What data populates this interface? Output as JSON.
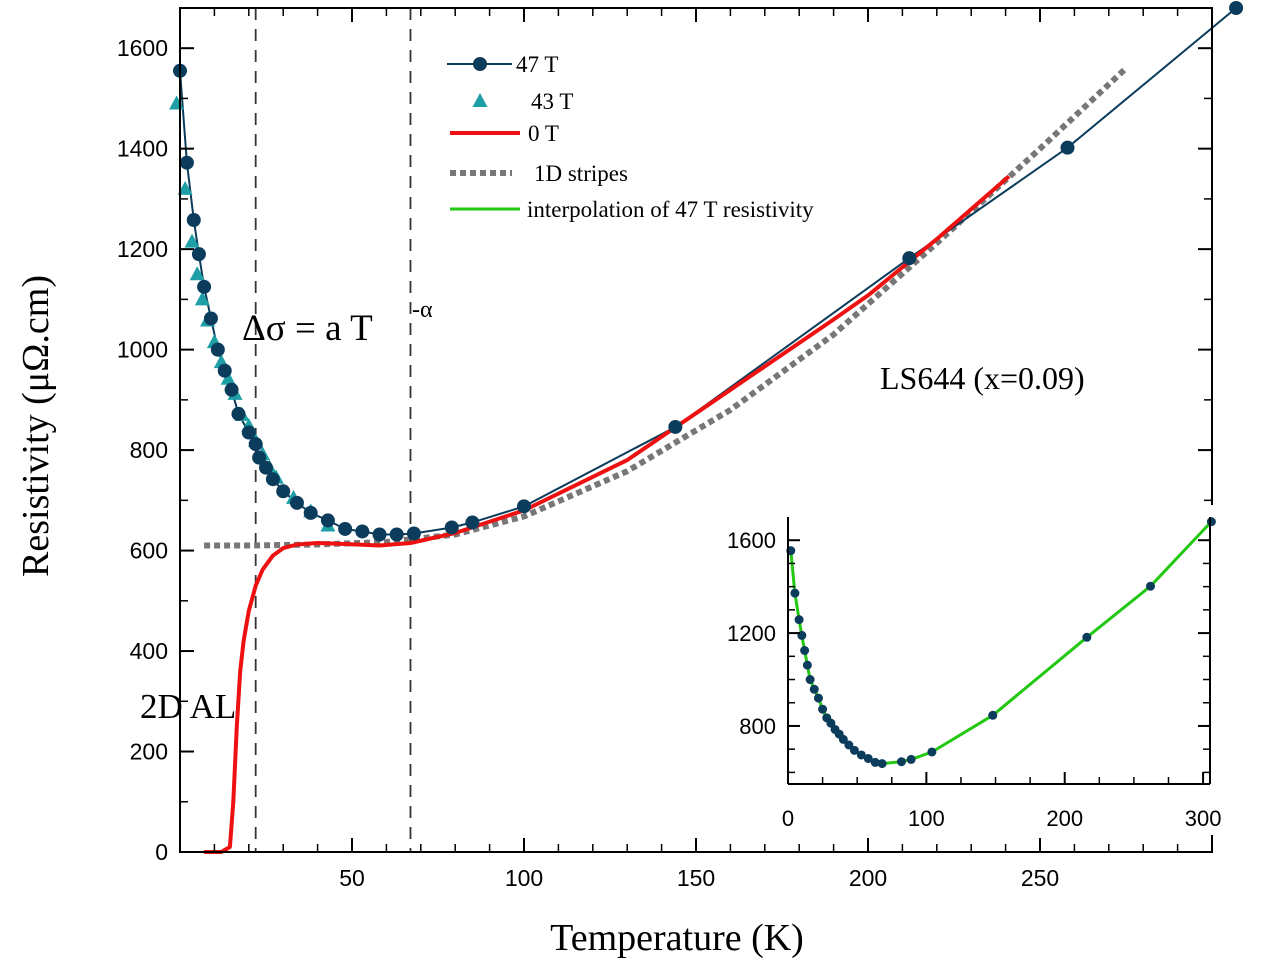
{
  "chart_data": [
    {
      "type": "line",
      "xlabel": "Temperature (K)",
      "ylabel": "Resistivity (μΩ.cm)",
      "xlim": [
        0,
        300
      ],
      "ylim": [
        0,
        1680
      ],
      "x_ticks": [
        50,
        100,
        150,
        200,
        250
      ],
      "y_ticks": [
        0,
        200,
        400,
        600,
        800,
        1000,
        1200,
        1400,
        1600
      ],
      "legend_position": "top-center",
      "annotations": {
        "formula_main": "Δσ = a T",
        "formula_exp": "-α",
        "sample": "LS644 (x=0.09)",
        "al": "2D AL"
      },
      "vlines": [
        22,
        67
      ],
      "series": [
        {
          "name": "47 T",
          "color": "#0c3c5c",
          "marker": "circle",
          "line": true,
          "x": [
            0,
            2,
            4,
            5.5,
            7,
            9,
            11,
            13,
            15,
            17,
            20,
            22,
            23,
            25,
            27,
            30,
            34,
            38,
            43,
            48,
            53,
            58,
            63,
            68,
            79,
            85,
            100,
            144,
            212,
            258,
            307
          ],
          "y": [
            1555,
            1372,
            1258,
            1190,
            1125,
            1062,
            1000,
            958,
            920,
            872,
            835,
            812,
            785,
            765,
            742,
            718,
            695,
            675,
            660,
            643,
            638,
            632,
            632,
            634,
            646,
            656,
            688,
            846,
            1182,
            1402,
            1680
          ]
        },
        {
          "name": "43 T",
          "color": "#1e9fa5",
          "marker": "triangle",
          "line": false,
          "x": [
            -1,
            1.5,
            3.5,
            5,
            6.5,
            8,
            10,
            12,
            14,
            16,
            18,
            20,
            22,
            24,
            26,
            28,
            33,
            38,
            43
          ],
          "y": [
            1490,
            1320,
            1215,
            1150,
            1100,
            1058,
            1015,
            975,
            942,
            912,
            870,
            848,
            818,
            792,
            765,
            745,
            705,
            678,
            650
          ]
        },
        {
          "name": "0 T",
          "color": "#ee1111",
          "marker": null,
          "line": true,
          "x": [
            7,
            12,
            14.5,
            15.5,
            16.5,
            17.5,
            18.5,
            20,
            22,
            24,
            27,
            30,
            34,
            40,
            48,
            58,
            67,
            80,
            100,
            130,
            160,
            190,
            200,
            220,
            241
          ],
          "y": [
            0,
            0,
            10,
            100,
            250,
            360,
            420,
            480,
            530,
            562,
            590,
            605,
            612,
            615,
            613,
            610,
            615,
            635,
            680,
            780,
            920,
            1060,
            1108,
            1220,
            1345
          ]
        },
        {
          "name": "1D stripes",
          "color": "#777777",
          "marker": null,
          "line": true,
          "dash": true,
          "x": [
            7,
            20,
            40,
            60,
            80,
            100,
            130,
            160,
            190,
            220,
            250,
            275
          ],
          "y": [
            610,
            610,
            612,
            617,
            632,
            668,
            758,
            880,
            1030,
            1212,
            1400,
            1560
          ]
        },
        {
          "name": "interpolation of 47 T resistivity",
          "color": "#22c811",
          "marker": null,
          "line": true
        }
      ]
    },
    {
      "type": "line",
      "xlim": [
        0,
        305
      ],
      "ylim": [
        550,
        1700
      ],
      "x_ticks": [
        0,
        100,
        200,
        300
      ],
      "y_ticks": [
        800,
        1200,
        1600
      ],
      "series": [
        {
          "name": "47 T",
          "color": "#0c3c5c",
          "marker": "circle",
          "x": [
            2,
            5,
            8,
            10,
            12,
            14,
            16,
            19,
            22,
            25,
            28,
            31,
            34,
            37,
            40,
            44,
            48,
            53,
            58,
            63,
            68,
            82,
            89,
            104,
            148,
            216,
            262,
            306
          ],
          "y": [
            1555,
            1372,
            1258,
            1190,
            1125,
            1062,
            1000,
            958,
            920,
            872,
            835,
            812,
            785,
            765,
            742,
            718,
            695,
            675,
            660,
            643,
            638,
            646,
            656,
            688,
            846,
            1182,
            1402,
            1680
          ]
        },
        {
          "name": "interpolation of 47 T resistivity",
          "color": "#22c811",
          "marker": null,
          "x": [
            2,
            5,
            8,
            10,
            12,
            14,
            16,
            19,
            22,
            25,
            28,
            31,
            34,
            37,
            40,
            44,
            48,
            53,
            58,
            63,
            68,
            82,
            89,
            104,
            148,
            216,
            262,
            306
          ],
          "y": [
            1555,
            1372,
            1258,
            1190,
            1125,
            1062,
            1000,
            958,
            920,
            872,
            835,
            812,
            785,
            765,
            742,
            718,
            695,
            675,
            660,
            643,
            638,
            646,
            656,
            688,
            846,
            1182,
            1402,
            1680
          ]
        }
      ]
    }
  ]
}
